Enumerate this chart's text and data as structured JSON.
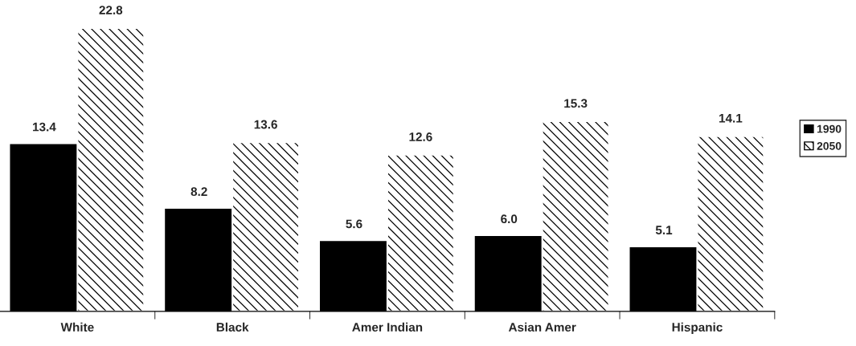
{
  "chart_data": {
    "type": "bar",
    "categories": [
      "White",
      "Black",
      "Amer Indian",
      "Asian Amer",
      "Hispanic"
    ],
    "series": [
      {
        "name": "1990",
        "color": "#000000",
        "values": [
          13.4,
          8.2,
          5.6,
          6.0,
          5.1
        ],
        "value_labels": [
          "13.4",
          "8.2",
          "5.6",
          "6.0",
          "5.1"
        ]
      },
      {
        "name": "2050",
        "color": "#ffffff",
        "values": [
          22.8,
          13.6,
          12.6,
          15.3,
          14.1
        ],
        "value_labels": [
          "22.8",
          "13.6",
          "12.6",
          "15.3",
          "14.1"
        ]
      }
    ],
    "legend": "right",
    "grid": false,
    "tick_labels": "x"
  }
}
